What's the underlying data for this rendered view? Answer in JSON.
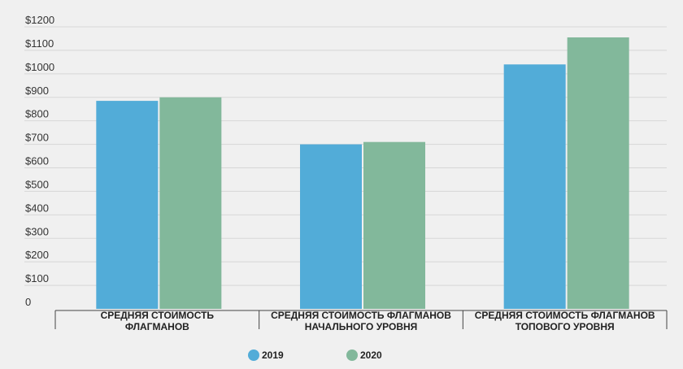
{
  "chart_data": {
    "type": "bar",
    "categories": [
      [
        "СРЕДНЯЯ СТОИМОСТЬ",
        "ФЛАГМАНОВ"
      ],
      [
        "СРЕДНЯЯ СТОИМОСТЬ ФЛАГМАНОВ",
        "НАЧАЛЬНОГО УРОВНЯ"
      ],
      [
        "СРЕДНЯЯ СТОИМОСТЬ ФЛАГМАНОВ",
        "ТОПОВОГО УРОВНЯ"
      ]
    ],
    "series": [
      {
        "name": "2019",
        "color": "#52acd8",
        "values": [
          885,
          700,
          1040
        ]
      },
      {
        "name": "2020",
        "color": "#82b89b",
        "values": [
          900,
          710,
          1155
        ]
      }
    ],
    "y_ticks": [
      "0",
      "$100",
      "$200",
      "$300",
      "$400",
      "$500",
      "$600",
      "$700",
      "$800",
      "$900",
      "$1000",
      "$1100",
      "$1200"
    ],
    "ylim": [
      0,
      1200
    ],
    "title": "",
    "xlabel": "",
    "ylabel": "",
    "grid": true,
    "legend": "bottom-center",
    "background": "#f0f0f0"
  }
}
